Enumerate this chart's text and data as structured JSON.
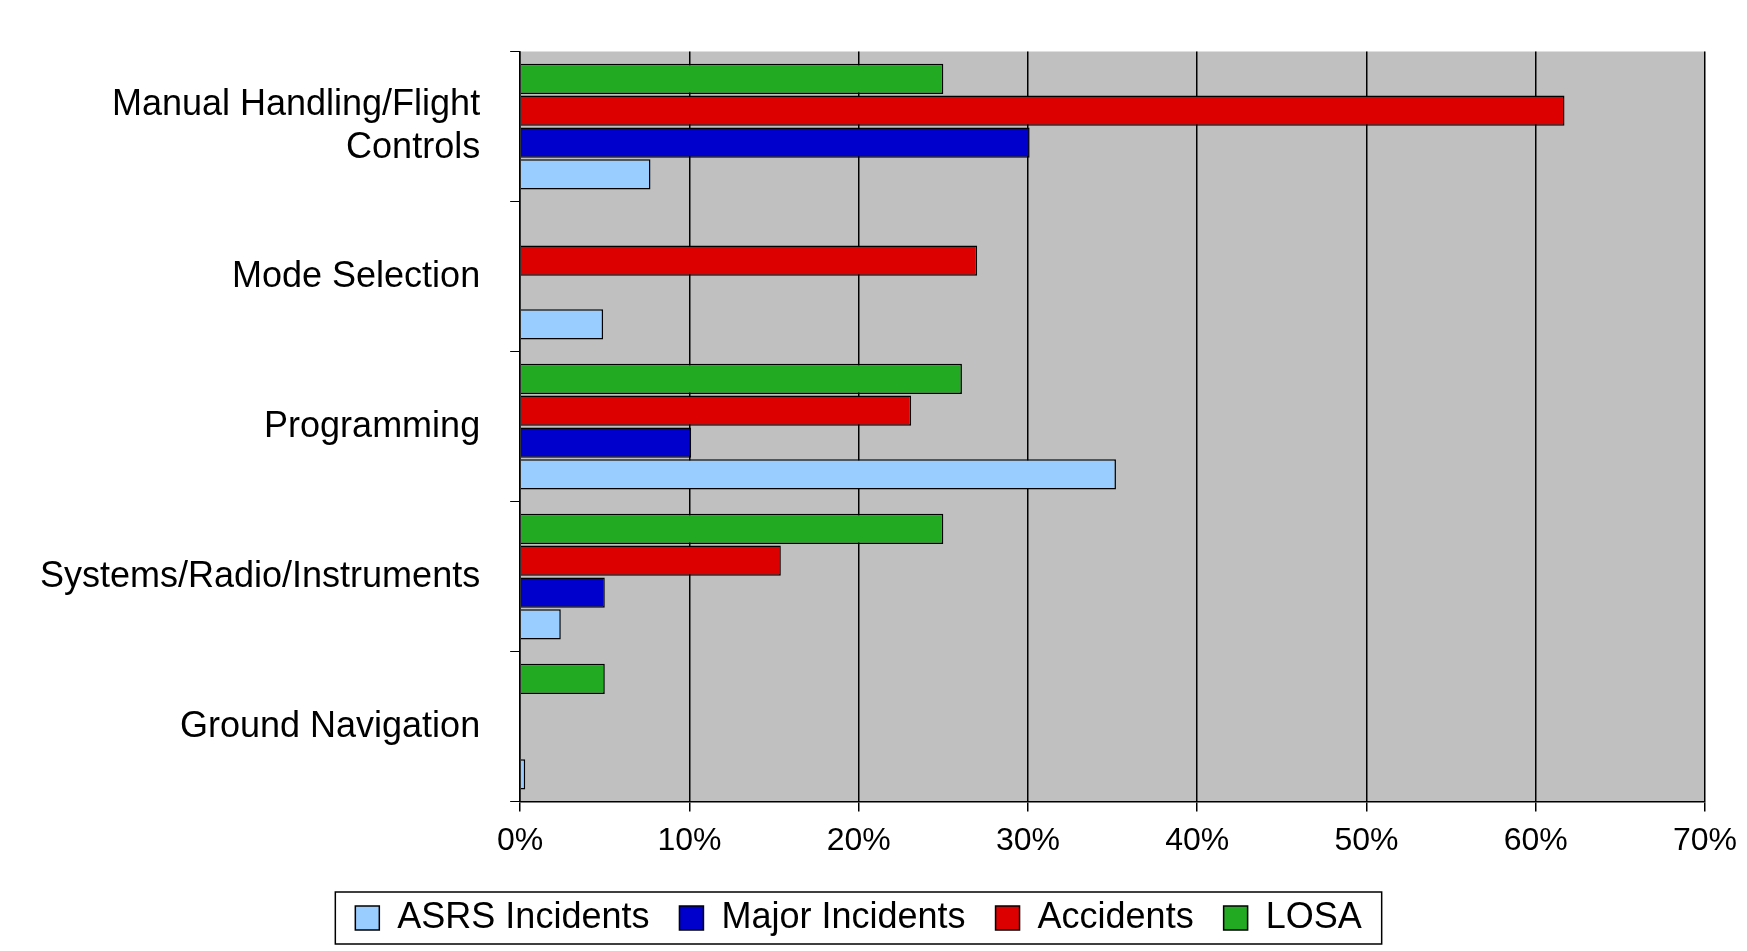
{
  "chart_data": {
    "type": "bar",
    "orientation": "horizontal",
    "categories": [
      "Manual Handling/Flight Controls",
      "Mode Selection",
      "Programming",
      "Systems/Radio/Instruments",
      "Ground Navigation"
    ],
    "series": [
      {
        "name": "ASRS Incidents",
        "color": "#99ccff",
        "values": [
          7.7,
          4.9,
          35.2,
          2.4,
          0.3
        ]
      },
      {
        "name": "Major Incidents",
        "color": "#0000cc",
        "values": [
          30.1,
          null,
          10.1,
          5.0,
          null
        ]
      },
      {
        "name": "Accidents",
        "color": "#dd0000",
        "values": [
          61.7,
          27.0,
          23.1,
          15.4,
          null
        ]
      },
      {
        "name": "LOSA",
        "color": "#22aa22",
        "values": [
          25.0,
          null,
          26.1,
          25.0,
          5.0
        ]
      }
    ],
    "xlim": [
      0,
      70
    ],
    "xticks": [
      {
        "value": 0,
        "label": "0%"
      },
      {
        "value": 10,
        "label": "10%"
      },
      {
        "value": 20,
        "label": "20%"
      },
      {
        "value": 30,
        "label": "30%"
      },
      {
        "value": 40,
        "label": "40%"
      },
      {
        "value": 50,
        "label": "50%"
      },
      {
        "value": 60,
        "label": "60%"
      },
      {
        "value": 70,
        "label": "70%"
      }
    ],
    "grid": "x",
    "legend": "bottom"
  }
}
